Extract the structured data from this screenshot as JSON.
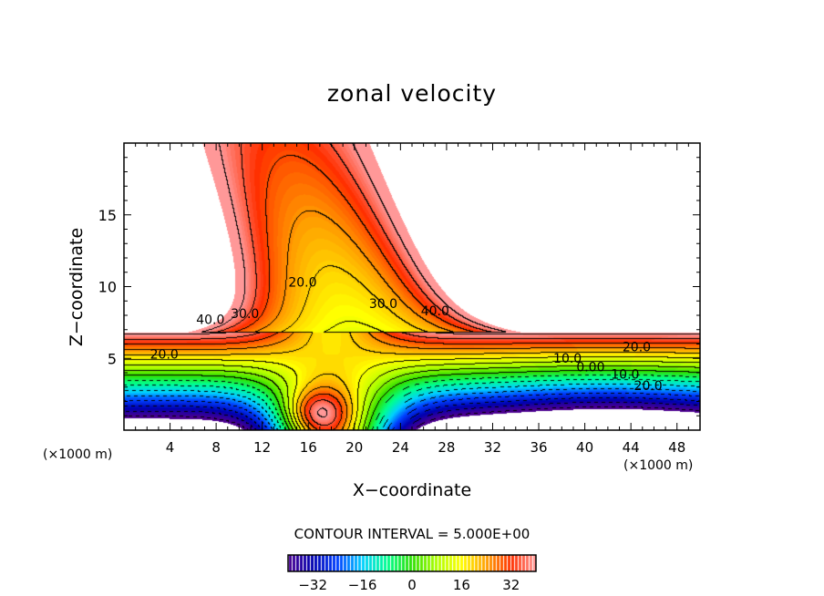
{
  "chart_data": {
    "type": "heatmap",
    "subtype": "filled-contour",
    "title": "zonal velocity",
    "xlabel": "X−coordinate",
    "ylabel": "Z−coordinate",
    "x_unit_left": "(×1000 m)",
    "x_unit_right": "(×1000 m)",
    "xlim": [
      0,
      50
    ],
    "ylim": [
      0,
      20
    ],
    "xticks": [
      4,
      8,
      12,
      16,
      20,
      24,
      28,
      32,
      36,
      40,
      44,
      48
    ],
    "xtick_labels": [
      "4",
      "8",
      "12",
      "16",
      "20",
      "24",
      "28",
      "32",
      "36",
      "40",
      "44",
      "48"
    ],
    "yticks": [
      5,
      10,
      15
    ],
    "ytick_labels": [
      "5",
      "10",
      "15"
    ],
    "contour_interval_label": "CONTOUR INTERVAL = 5.000E+00",
    "contour_interval": 5,
    "colorbar": {
      "range": [
        -40,
        40
      ],
      "ticks": [
        -32,
        -16,
        0,
        16,
        32
      ],
      "tick_labels": [
        "−32",
        "−16",
        "0",
        "16",
        "32"
      ],
      "colors": [
        "#4b0090",
        "#0000b0",
        "#0040ff",
        "#00d0ff",
        "#00ff90",
        "#30e000",
        "#b0ff00",
        "#ffff00",
        "#ffa000",
        "#ff3000",
        "#ff9898"
      ]
    },
    "contour_labels": [
      {
        "text": "40.0",
        "x": 7.5,
        "z": 7.4
      },
      {
        "text": "30.0",
        "x": 10.5,
        "z": 7.8
      },
      {
        "text": "20.0",
        "x": 15.5,
        "z": 10.0
      },
      {
        "text": "30.0",
        "x": 22.5,
        "z": 8.5
      },
      {
        "text": "40.0",
        "x": 27,
        "z": 8.0
      },
      {
        "text": "20.0",
        "x": 3.5,
        "z": 5.0
      },
      {
        "text": "20.0",
        "x": 44.5,
        "z": 5.5
      },
      {
        "text": "10.0",
        "x": 38.5,
        "z": 4.7
      },
      {
        "text": "0.00",
        "x": 40.5,
        "z": 4.1
      },
      {
        "text": "10.0",
        "x": 43.5,
        "z": 3.6
      },
      {
        "text": "20.0",
        "x": 45.5,
        "z": 2.8
      }
    ]
  }
}
